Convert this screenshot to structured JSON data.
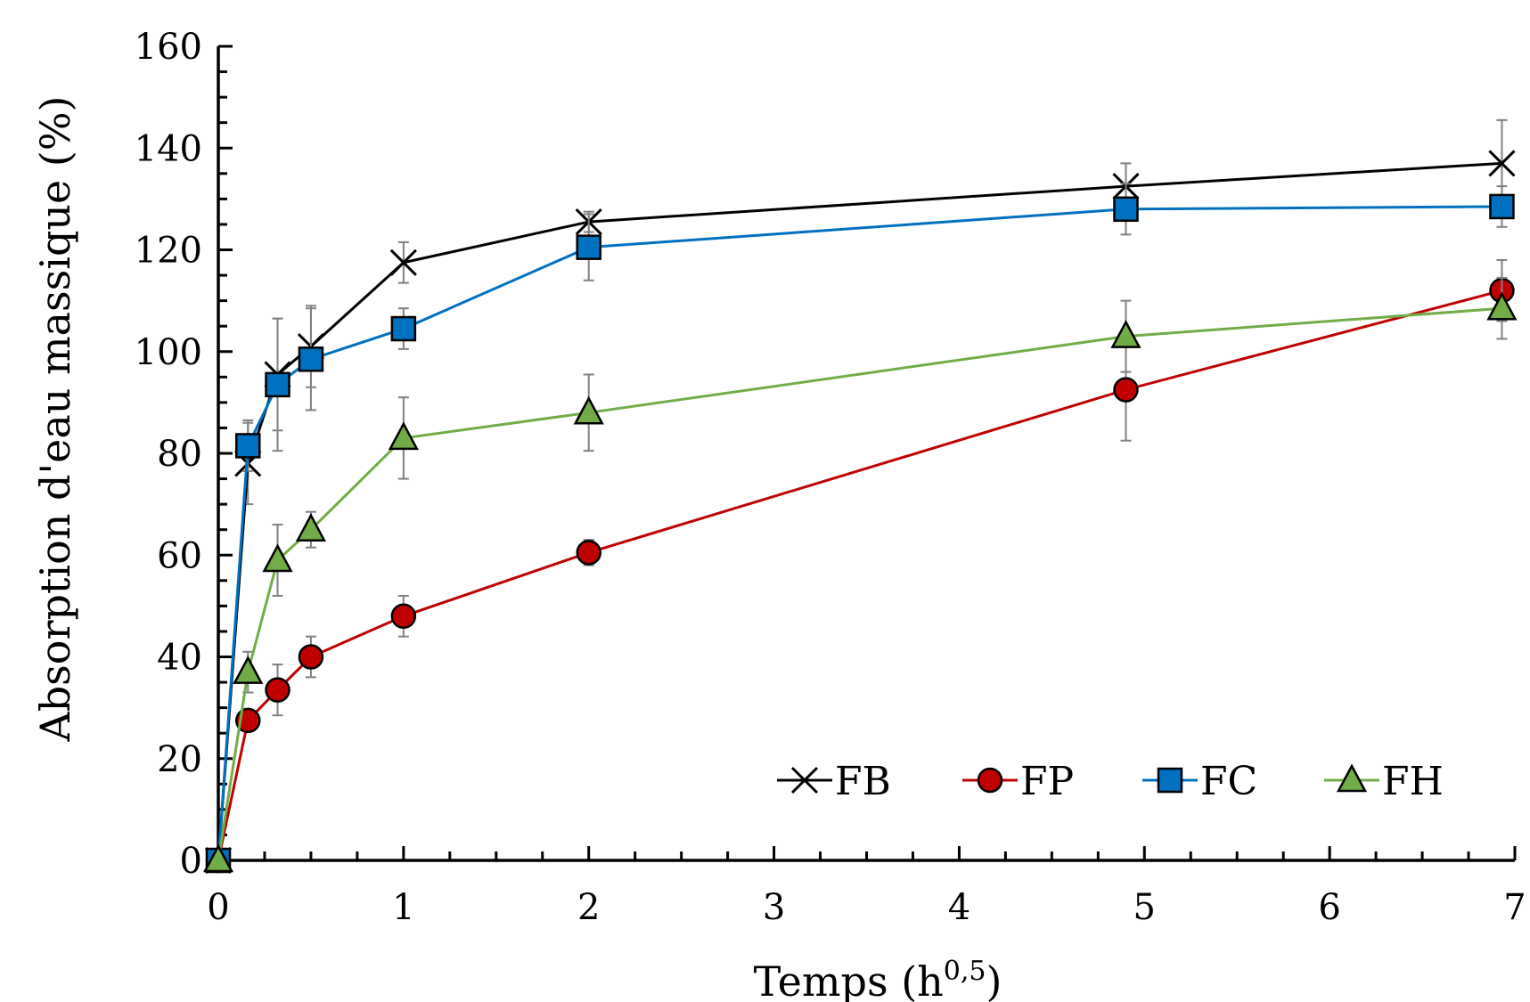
{
  "chart_data": {
    "type": "line",
    "title": "",
    "xlabel_main": "Temps (h",
    "xlabel_sup": "0,5",
    "xlabel_end": ")",
    "ylabel": "Absorption d'eau massique (%)",
    "xlim": [
      0,
      7
    ],
    "ylim": [
      0,
      160
    ],
    "x_ticks": [
      "0",
      "1",
      "2",
      "3",
      "4",
      "5",
      "6",
      "7"
    ],
    "y_ticks": [
      "0",
      "20",
      "40",
      "60",
      "80",
      "100",
      "120",
      "140",
      "160"
    ],
    "grid": false,
    "legend_position": "bottom-right",
    "series": [
      {
        "name": "FB",
        "marker": "x",
        "color": "#000000",
        "x": [
          0,
          0.16,
          0.32,
          0.5,
          1.0,
          2.0,
          4.9,
          6.93
        ],
        "y": [
          0,
          78,
          95.5,
          101,
          117.5,
          125.5,
          132.5,
          137
        ],
        "err": [
          0,
          8,
          11,
          8,
          4,
          2,
          4.5,
          8.5
        ]
      },
      {
        "name": "FP",
        "marker": "circle",
        "color": "#c00000",
        "x": [
          0,
          0.16,
          0.32,
          0.5,
          1.0,
          2.0,
          4.9,
          6.93
        ],
        "y": [
          0,
          27.5,
          33.5,
          40,
          48,
          60.5,
          92.5,
          112
        ],
        "err": [
          0,
          2,
          5,
          4,
          4,
          2.5,
          10,
          6
        ]
      },
      {
        "name": "FC",
        "marker": "square",
        "color": "#0070c0",
        "x": [
          0,
          0.16,
          0.32,
          0.5,
          1.0,
          2.0,
          4.9,
          6.93
        ],
        "y": [
          0,
          81.5,
          93.5,
          98.5,
          104.5,
          120.5,
          128,
          128.5
        ],
        "err": [
          0,
          5,
          13,
          10,
          4,
          6.5,
          5,
          4
        ]
      },
      {
        "name": "FH",
        "marker": "triangle",
        "color": "#70ad47",
        "x": [
          0,
          0.16,
          0.32,
          0.5,
          1.0,
          2.0,
          4.9,
          6.93
        ],
        "y": [
          0,
          37,
          59,
          65,
          83,
          88,
          103,
          108.5
        ],
        "err": [
          0,
          4,
          7,
          3.5,
          8,
          7.5,
          7,
          6
        ]
      }
    ]
  }
}
